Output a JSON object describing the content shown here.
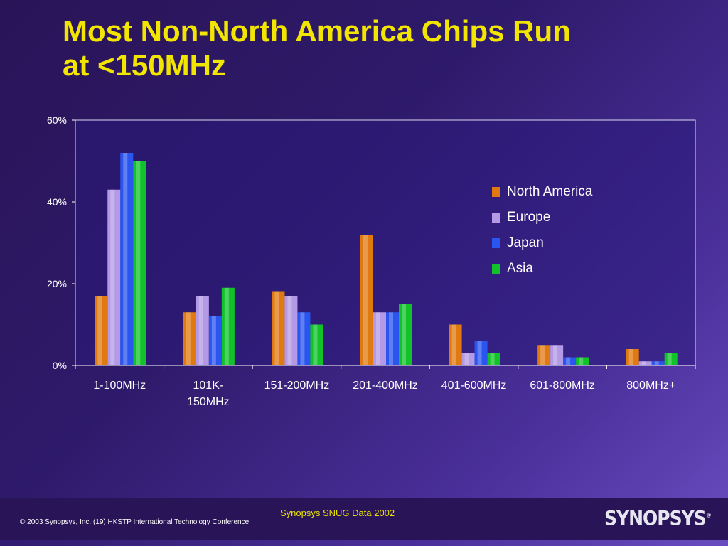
{
  "slide": {
    "title_line1": "Most Non-North America Chips Run",
    "title_line2": "at <150MHz",
    "source": "Synopsys SNUG Data 2002",
    "copyright": "© 2003 Synopsys, Inc. (19) HKSTP International Technology Conference",
    "logo_text": "SYNOPSYS"
  },
  "chart_data": {
    "type": "bar",
    "categories": [
      [
        "1-100MHz"
      ],
      [
        "101K-",
        "150MHz"
      ],
      [
        "151-200MHz"
      ],
      [
        "201-400MHz"
      ],
      [
        "401-600MHz"
      ],
      [
        "601-800MHz"
      ],
      [
        "800MHz+"
      ]
    ],
    "series": [
      {
        "name": "North America",
        "color": "#e07a10",
        "values": [
          17,
          13,
          18,
          32,
          10,
          5,
          4
        ]
      },
      {
        "name": "Europe",
        "color": "#b49ae6",
        "values": [
          43,
          17,
          17,
          13,
          3,
          5,
          1
        ]
      },
      {
        "name": "Japan",
        "color": "#2a55ee",
        "values": [
          52,
          12,
          13,
          13,
          6,
          2,
          1
        ]
      },
      {
        "name": "Asia",
        "color": "#12c22a",
        "values": [
          50,
          19,
          10,
          15,
          3,
          2,
          3
        ]
      }
    ],
    "yticks": [
      "0%",
      "20%",
      "40%",
      "60%"
    ],
    "ylim": [
      0,
      60
    ],
    "legend_position": "right",
    "grid": false
  }
}
